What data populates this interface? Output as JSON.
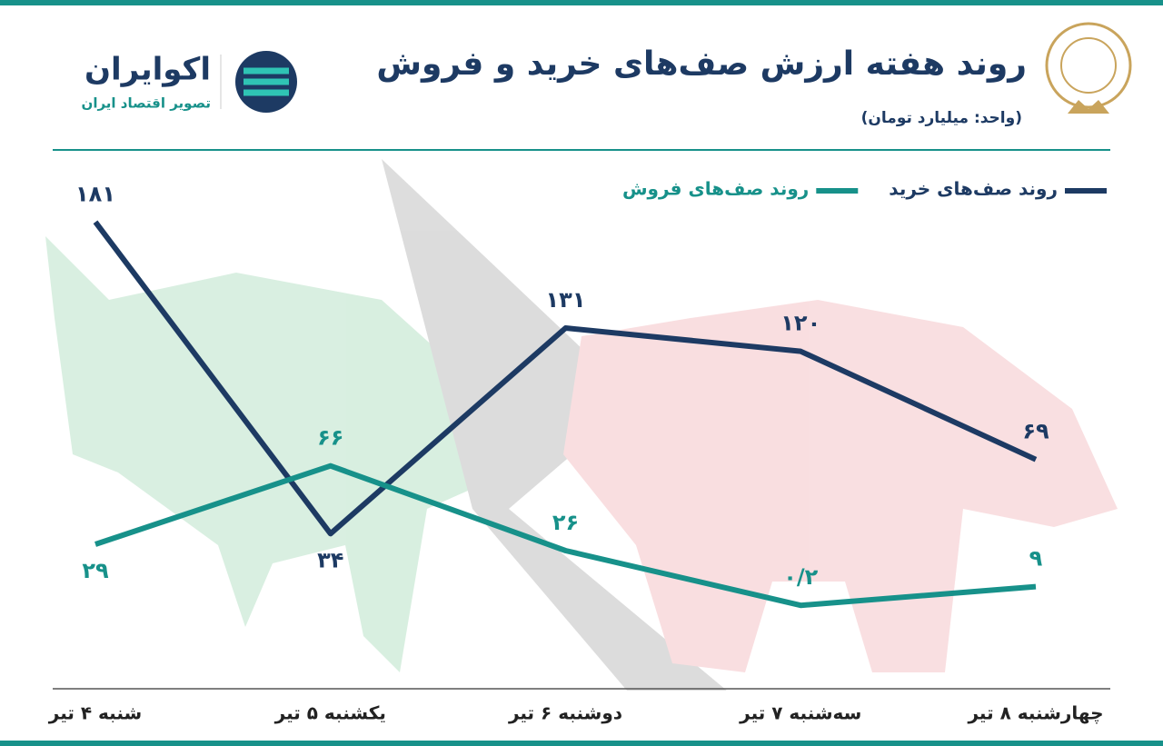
{
  "chart_data": {
    "type": "line",
    "title": "روند هفته ارزش صف‌های خرید و فروش",
    "subtitle": "(واحد: میلیارد تومان)",
    "brand": "اکوایران",
    "brand_tagline": "تصویر اقتصاد ایران",
    "categories": [
      "شنبه ۴ تیر",
      "یکشنبه ۵ تیر",
      "دوشنبه ۶ تیر",
      "سه‌شنبه ۷ تیر",
      "چهارشنبه ۸ تیر"
    ],
    "series": [
      {
        "name": "روند صف‌های خرید",
        "color": "#1d3a63",
        "values": [
          181,
          34,
          131,
          120,
          69
        ],
        "value_labels": [
          "۱۸۱",
          "۳۴",
          "۱۳۱",
          "۱۲۰",
          "۶۹"
        ]
      },
      {
        "name": "روند صف‌های فروش",
        "color": "#17918a",
        "values": [
          29,
          66,
          26,
          0.2,
          9
        ],
        "value_labels": [
          "۲۹",
          "۶۶",
          "۲۶",
          "۰/۲",
          "۹"
        ]
      }
    ],
    "ylim": [
      -40,
      200
    ],
    "legend": "top-right"
  }
}
